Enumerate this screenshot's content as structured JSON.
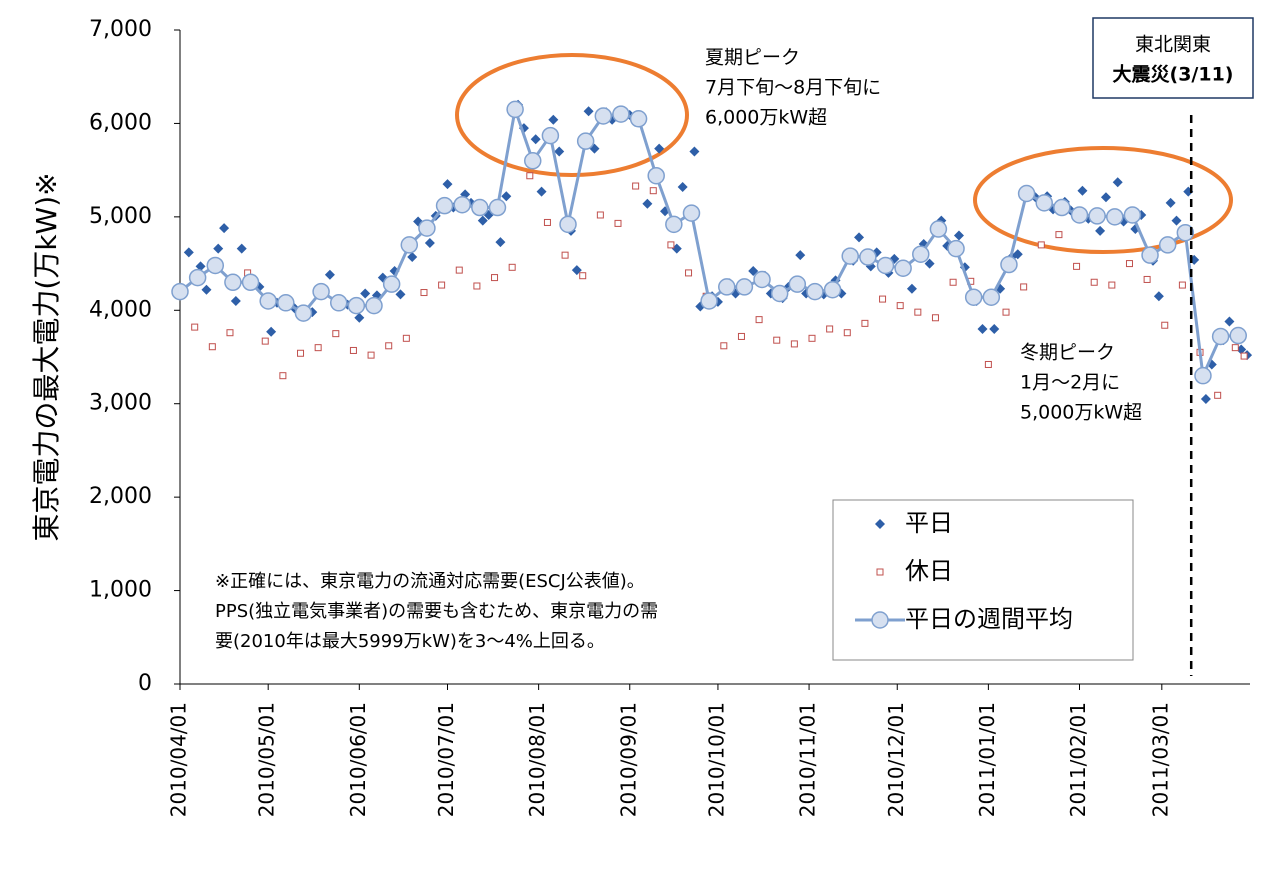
{
  "chart_data": {
    "type": "scatter",
    "ylabel": "東京電力の最大電力(万kW)※",
    "xlim": [
      "2010-04-01",
      "2011-03-31"
    ],
    "xticks": [
      {
        "value": "2010-04-01",
        "label": "2010/04/01"
      },
      {
        "value": "2010-05-01",
        "label": "2010/05/01"
      },
      {
        "value": "2010-06-01",
        "label": "2010/06/01"
      },
      {
        "value": "2010-07-01",
        "label": "2010/07/01"
      },
      {
        "value": "2010-08-01",
        "label": "2010/08/01"
      },
      {
        "value": "2010-09-01",
        "label": "2010/09/01"
      },
      {
        "value": "2010-10-01",
        "label": "2010/10/01"
      },
      {
        "value": "2010-11-01",
        "label": "2010/11/01"
      },
      {
        "value": "2010-12-01",
        "label": "2010/12/01"
      },
      {
        "value": "2011-01-01",
        "label": "2011/01/01"
      },
      {
        "value": "2011-02-01",
        "label": "2011/02/01"
      },
      {
        "value": "2011-03-01",
        "label": "2011/03/01"
      }
    ],
    "ylim": [
      0,
      7000
    ],
    "yticks": [
      0,
      {
        "value": 1000,
        "label": "1,000"
      },
      {
        "value": 2000,
        "label": "2,000"
      },
      {
        "value": 3000,
        "label": "3,000"
      },
      {
        "value": 4000,
        "label": "4,000"
      },
      {
        "value": 5000,
        "label": "5,000"
      },
      {
        "value": 6000,
        "label": "6,000"
      },
      {
        "value": 7000,
        "label": "7,000"
      }
    ],
    "series": [
      {
        "name": "平日",
        "color": "#2e5fa8",
        "marker": "diamond",
        "x": [
          "2010-04-02",
          "2010-04-04",
          "2010-04-08",
          "2010-04-10",
          "2010-04-14",
          "2010-04-16",
          "2010-04-20",
          "2010-04-22",
          "2010-04-26",
          "2010-04-28",
          "2010-05-02",
          "2010-05-04",
          "2010-05-08",
          "2010-05-10",
          "2010-05-14",
          "2010-05-16",
          "2010-05-20",
          "2010-05-22",
          "2010-05-26",
          "2010-05-28",
          "2010-06-01",
          "2010-06-03",
          "2010-06-07",
          "2010-06-09",
          "2010-06-13",
          "2010-06-15",
          "2010-06-19",
          "2010-06-21",
          "2010-06-25",
          "2010-06-27",
          "2010-07-01",
          "2010-07-03",
          "2010-07-07",
          "2010-07-09",
          "2010-07-13",
          "2010-07-15",
          "2010-07-19",
          "2010-07-21",
          "2010-07-25",
          "2010-07-27",
          "2010-07-31",
          "2010-08-02",
          "2010-08-06",
          "2010-08-08",
          "2010-08-12",
          "2010-08-14",
          "2010-08-18",
          "2010-08-20",
          "2010-08-24",
          "2010-08-26",
          "2010-08-30",
          "2010-09-01",
          "2010-09-05",
          "2010-09-07",
          "2010-09-11",
          "2010-09-13",
          "2010-09-17",
          "2010-09-19",
          "2010-09-23",
          "2010-09-25",
          "2010-09-29",
          "2010-10-01",
          "2010-10-05",
          "2010-10-07",
          "2010-10-11",
          "2010-10-13",
          "2010-10-17",
          "2010-10-19",
          "2010-10-23",
          "2010-10-25",
          "2010-10-29",
          "2010-10-31",
          "2010-11-04",
          "2010-11-06",
          "2010-11-10",
          "2010-11-12",
          "2010-11-16",
          "2010-11-18",
          "2010-11-22",
          "2010-11-24",
          "2010-11-28",
          "2010-11-30",
          "2010-12-04",
          "2010-12-06",
          "2010-12-10",
          "2010-12-12",
          "2010-12-16",
          "2010-12-18",
          "2010-12-22",
          "2010-12-24",
          "2010-12-28",
          "2010-12-30",
          "2011-01-03",
          "2011-01-05",
          "2011-01-09",
          "2011-01-11",
          "2011-01-15",
          "2011-01-17",
          "2011-01-21",
          "2011-01-23",
          "2011-01-27",
          "2011-01-29",
          "2011-02-02",
          "2011-02-04",
          "2011-02-08",
          "2011-02-10",
          "2011-02-14",
          "2011-02-16",
          "2011-02-20",
          "2011-02-22",
          "2011-02-26",
          "2011-02-28",
          "2011-03-04",
          "2011-03-06",
          "2011-03-10",
          "2011-03-12",
          "2011-03-16",
          "2011-03-18",
          "2011-03-22",
          "2011-03-24",
          "2011-03-28",
          "2011-03-30"
        ],
        "values": [
          4180,
          4620,
          4470,
          4220,
          4660,
          4880,
          4100,
          4660,
          4320,
          4250,
          3770,
          4080,
          4060,
          4020,
          3950,
          3980,
          4170,
          4380,
          4110,
          4060,
          3920,
          4180,
          4160,
          4350,
          4420,
          4170,
          4570,
          4950,
          4720,
          5010,
          5350,
          5100,
          5240,
          5150,
          4960,
          5020,
          4730,
          5220,
          6200,
          5950,
          5830,
          5270,
          6040,
          5700,
          4850,
          4430,
          6130,
          5730,
          6120,
          6040,
          6120,
          6090,
          6020,
          5140,
          5730,
          5060,
          4660,
          5320,
          5700,
          4040,
          4150,
          4090,
          4290,
          4180,
          4230,
          4420,
          4370,
          4180,
          4130,
          4250,
          4590,
          4180,
          4220,
          4170,
          4320,
          4180,
          4530,
          4780,
          4470,
          4620,
          4400,
          4550,
          4480,
          4230,
          4710,
          4500,
          4960,
          4690,
          4800,
          4460,
          4100,
          3800,
          3800,
          4230,
          4570,
          4600,
          5280,
          5210,
          5220,
          5080,
          5160,
          5070,
          5280,
          4980,
          4850,
          5210,
          5370,
          4950,
          4870,
          5020,
          4530,
          4150,
          5150,
          4960,
          5270,
          4540,
          3050,
          3420,
          3680,
          3880,
          3580,
          3520
        ]
      },
      {
        "name": "休日",
        "color": "#c0504d",
        "marker": "square",
        "x": [
          "2010-04-06",
          "2010-04-12",
          "2010-04-18",
          "2010-04-24",
          "2010-04-30",
          "2010-05-06",
          "2010-05-12",
          "2010-05-18",
          "2010-05-24",
          "2010-05-30",
          "2010-06-05",
          "2010-06-11",
          "2010-06-17",
          "2010-06-23",
          "2010-06-29",
          "2010-07-05",
          "2010-07-11",
          "2010-07-17",
          "2010-07-23",
          "2010-07-29",
          "2010-08-04",
          "2010-08-10",
          "2010-08-16",
          "2010-08-22",
          "2010-08-28",
          "2010-09-03",
          "2010-09-09",
          "2010-09-15",
          "2010-09-21",
          "2010-09-27",
          "2010-10-03",
          "2010-10-09",
          "2010-10-15",
          "2010-10-21",
          "2010-10-27",
          "2010-11-02",
          "2010-11-08",
          "2010-11-14",
          "2010-11-20",
          "2010-11-26",
          "2010-12-02",
          "2010-12-08",
          "2010-12-14",
          "2010-12-20",
          "2010-12-26",
          "2011-01-01",
          "2011-01-07",
          "2011-01-13",
          "2011-01-19",
          "2011-01-25",
          "2011-01-31",
          "2011-02-06",
          "2011-02-12",
          "2011-02-18",
          "2011-02-24",
          "2011-03-02",
          "2011-03-08",
          "2011-03-14",
          "2011-03-20",
          "2011-03-26",
          "2011-03-29"
        ],
        "values": [
          3820,
          3610,
          3760,
          4400,
          3670,
          3300,
          3540,
          3600,
          3750,
          3570,
          3520,
          3620,
          3700,
          4190,
          4270,
          4430,
          4260,
          4350,
          4460,
          5440,
          4940,
          4590,
          4370,
          5020,
          4930,
          5330,
          5280,
          4700,
          4400,
          4150,
          3620,
          3720,
          3900,
          3680,
          3640,
          3700,
          3800,
          3760,
          3860,
          4120,
          4050,
          3980,
          3920,
          4300,
          4310,
          3420,
          3980,
          4250,
          4700,
          4810,
          4470,
          4300,
          4270,
          4500,
          4330,
          3840,
          4270,
          3550,
          3090,
          3600,
          3510
        ]
      },
      {
        "name": "平日の週間平均",
        "color": "#7fa0cf",
        "marker": "circle",
        "line": true,
        "x": [
          "2010-04-01",
          "2010-04-07",
          "2010-04-13",
          "2010-04-19",
          "2010-04-25",
          "2010-05-01",
          "2010-05-07",
          "2010-05-13",
          "2010-05-19",
          "2010-05-25",
          "2010-05-31",
          "2010-06-06",
          "2010-06-12",
          "2010-06-18",
          "2010-06-24",
          "2010-06-30",
          "2010-07-06",
          "2010-07-12",
          "2010-07-18",
          "2010-07-24",
          "2010-07-30",
          "2010-08-05",
          "2010-08-11",
          "2010-08-17",
          "2010-08-23",
          "2010-08-29",
          "2010-09-04",
          "2010-09-10",
          "2010-09-16",
          "2010-09-22",
          "2010-09-28",
          "2010-10-04",
          "2010-10-10",
          "2010-10-16",
          "2010-10-22",
          "2010-10-28",
          "2010-11-03",
          "2010-11-09",
          "2010-11-15",
          "2010-11-21",
          "2010-11-27",
          "2010-12-03",
          "2010-12-09",
          "2010-12-15",
          "2010-12-21",
          "2010-12-27",
          "2011-01-02",
          "2011-01-08",
          "2011-01-14",
          "2011-01-20",
          "2011-01-26",
          "2011-02-01",
          "2011-02-07",
          "2011-02-13",
          "2011-02-19",
          "2011-02-25",
          "2011-03-03",
          "2011-03-09",
          "2011-03-15",
          "2011-03-21",
          "2011-03-27"
        ],
        "values": [
          4200,
          4350,
          4480,
          4300,
          4300,
          4100,
          4080,
          3970,
          4200,
          4080,
          4050,
          4050,
          4280,
          4700,
          4880,
          5120,
          5130,
          5100,
          5100,
          6150,
          5600,
          5870,
          4920,
          5810,
          6080,
          6100,
          6050,
          5440,
          4920,
          5040,
          4100,
          4250,
          4250,
          4330,
          4180,
          4280,
          4200,
          4220,
          4580,
          4570,
          4480,
          4450,
          4600,
          4870,
          4660,
          4140,
          4140,
          4490,
          5250,
          5150,
          5100,
          5020,
          5010,
          5000,
          5020,
          4590,
          4700,
          4830,
          3300,
          3720,
          3730
        ]
      }
    ],
    "markers": [
      {
        "x": "2011-03-11",
        "lines": [
          "東北関東",
          "大震災(3/11)"
        ]
      }
    ],
    "annotations": [
      {
        "lines": [
          "夏期ピーク",
          "7月下旬～8月下旬に",
          "6,000万kW超"
        ]
      },
      {
        "lines": [
          "冬期ピーク",
          "1月～2月に",
          "5,000万kW超"
        ]
      }
    ],
    "note": [
      "※正確には、東京電力の流通対応需要(ESCJ公表値)。",
      "PPS(独立電気事業者)の需要も含むため、東京電力の需",
      "要(2010年は最大5999万kW)を3～4%上回る。"
    ]
  }
}
